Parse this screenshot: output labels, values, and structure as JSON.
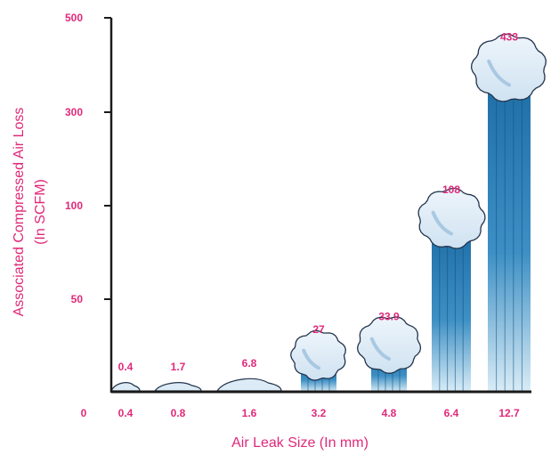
{
  "chart_data": {
    "type": "bar",
    "xlabel": "Air Leak Size (In mm)",
    "ylabel_line1": "Associated Compressed Air Loss",
    "ylabel_line2": "(In SCFM)",
    "x_origin_label": "0",
    "categories": [
      "0.4",
      "0.8",
      "1.6",
      "3.2",
      "4.8",
      "6.4",
      "12.7"
    ],
    "values": [
      0.4,
      1.7,
      6.8,
      27,
      33.9,
      108,
      433
    ],
    "value_labels": [
      "0.4",
      "1.7",
      "6.8",
      "27",
      "33.9",
      "108",
      "433"
    ],
    "y_ticks": [
      50,
      100,
      300,
      500
    ],
    "y_tick_labels": [
      "50",
      "100",
      "300",
      "500"
    ],
    "y_scale": "nonlinear",
    "grid": false,
    "legend": "none",
    "colors": {
      "text": "#e0297a",
      "axis": "#1a1a1a",
      "bar_dark": "#1f6fa6",
      "bar_light": "#d9ecf6",
      "cloud_fill": "#dcebf5",
      "cloud_stroke": "#23344d",
      "cloud_shade": "#a9c8e2"
    }
  }
}
